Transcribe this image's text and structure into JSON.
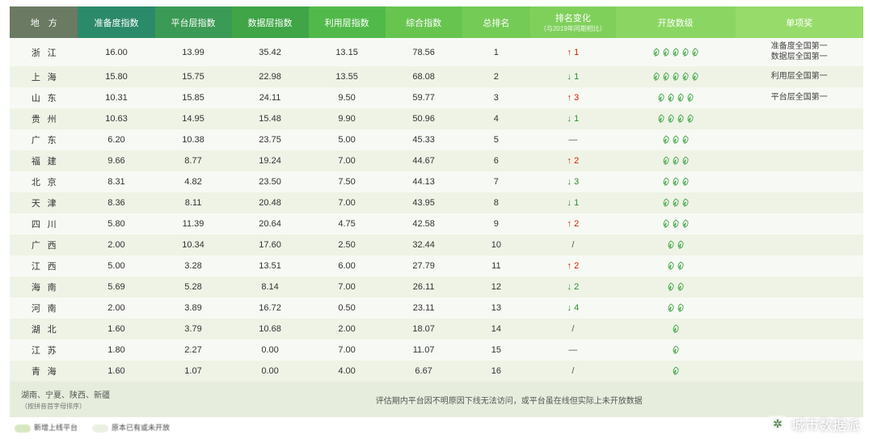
{
  "header": {
    "columns": [
      {
        "label": "地　方",
        "color": "#6b7a62"
      },
      {
        "label": "准备度指数",
        "color": "#2b8a6a"
      },
      {
        "label": "平台层指数",
        "color": "#3b9a55"
      },
      {
        "label": "数据层指数",
        "color": "#3fa546"
      },
      {
        "label": "利用层指数",
        "color": "#51b94a"
      },
      {
        "label": "综合指数",
        "color": "#67c54f"
      },
      {
        "label": "总排名",
        "color": "#74cb56"
      },
      {
        "label": "排名变化",
        "sub": "（与2019年同期相比）",
        "color": "#7fd05b"
      },
      {
        "label": "开放数级",
        "color": "#8bd662"
      },
      {
        "label": "单项奖",
        "color": "#97db6a"
      }
    ]
  },
  "col_widths": [
    "8%",
    "9%",
    "9%",
    "9%",
    "9%",
    "9%",
    "8%",
    "10%",
    "14%",
    "15%"
  ],
  "rows": [
    {
      "region": "浙江",
      "prep": "16.00",
      "plat": "13.99",
      "data": "35.42",
      "util": "13.15",
      "total": "78.56",
      "rank": "1",
      "change": {
        "dir": "up",
        "val": "1"
      },
      "level": 5,
      "award": "准备度全国第一\n数据层全国第一"
    },
    {
      "region": "上海",
      "prep": "15.80",
      "plat": "15.75",
      "data": "22.98",
      "util": "13.55",
      "total": "68.08",
      "rank": "2",
      "change": {
        "dir": "down",
        "val": "1"
      },
      "level": 5,
      "award": "利用层全国第一"
    },
    {
      "region": "山东",
      "prep": "10.31",
      "plat": "15.85",
      "data": "24.11",
      "util": "9.50",
      "total": "59.77",
      "rank": "3",
      "change": {
        "dir": "up",
        "val": "3"
      },
      "level": 4,
      "award": "平台层全国第一"
    },
    {
      "region": "贵州",
      "prep": "10.63",
      "plat": "14.95",
      "data": "15.48",
      "util": "9.90",
      "total": "50.96",
      "rank": "4",
      "change": {
        "dir": "down",
        "val": "1"
      },
      "level": 4,
      "award": ""
    },
    {
      "region": "广东",
      "prep": "6.20",
      "plat": "10.38",
      "data": "23.75",
      "util": "5.00",
      "total": "45.33",
      "rank": "5",
      "change": {
        "dir": "none",
        "val": "—"
      },
      "level": 3,
      "award": ""
    },
    {
      "region": "福建",
      "prep": "9.66",
      "plat": "8.77",
      "data": "19.24",
      "util": "7.00",
      "total": "44.67",
      "rank": "6",
      "change": {
        "dir": "up",
        "val": "2"
      },
      "level": 3,
      "award": ""
    },
    {
      "region": "北京",
      "prep": "8.31",
      "plat": "4.82",
      "data": "23.50",
      "util": "7.50",
      "total": "44.13",
      "rank": "7",
      "change": {
        "dir": "down",
        "val": "3"
      },
      "level": 3,
      "award": ""
    },
    {
      "region": "天津",
      "prep": "8.36",
      "plat": "8.11",
      "data": "20.48",
      "util": "7.00",
      "total": "43.95",
      "rank": "8",
      "change": {
        "dir": "down",
        "val": "1"
      },
      "level": 3,
      "award": ""
    },
    {
      "region": "四川",
      "prep": "5.80",
      "plat": "11.39",
      "data": "20.64",
      "util": "4.75",
      "total": "42.58",
      "rank": "9",
      "change": {
        "dir": "up",
        "val": "2"
      },
      "level": 3,
      "award": ""
    },
    {
      "region": "广西",
      "prep": "2.00",
      "plat": "10.34",
      "data": "17.60",
      "util": "2.50",
      "total": "32.44",
      "rank": "10",
      "change": {
        "dir": "slash",
        "val": "/"
      },
      "level": 2,
      "award": ""
    },
    {
      "region": "江西",
      "prep": "5.00",
      "plat": "3.28",
      "data": "13.51",
      "util": "6.00",
      "total": "27.79",
      "rank": "11",
      "change": {
        "dir": "up",
        "val": "2"
      },
      "level": 2,
      "award": ""
    },
    {
      "region": "海南",
      "prep": "5.69",
      "plat": "5.28",
      "data": "8.14",
      "util": "7.00",
      "total": "26.11",
      "rank": "12",
      "change": {
        "dir": "down",
        "val": "2"
      },
      "level": 2,
      "award": ""
    },
    {
      "region": "河南",
      "prep": "2.00",
      "plat": "3.89",
      "data": "16.72",
      "util": "0.50",
      "total": "23.11",
      "rank": "13",
      "change": {
        "dir": "down",
        "val": "4"
      },
      "level": 2,
      "award": ""
    },
    {
      "region": "湖北",
      "prep": "1.60",
      "plat": "3.79",
      "data": "10.68",
      "util": "2.00",
      "total": "18.07",
      "rank": "14",
      "change": {
        "dir": "slash",
        "val": "/"
      },
      "level": 1,
      "award": ""
    },
    {
      "region": "江苏",
      "prep": "1.80",
      "plat": "2.27",
      "data": "0.00",
      "util": "7.00",
      "total": "11.07",
      "rank": "15",
      "change": {
        "dir": "none",
        "val": "—"
      },
      "level": 1,
      "award": ""
    },
    {
      "region": "青海",
      "prep": "1.60",
      "plat": "1.07",
      "data": "0.00",
      "util": "4.00",
      "total": "6.67",
      "rank": "16",
      "change": {
        "dir": "slash",
        "val": "/"
      },
      "level": 1,
      "award": ""
    }
  ],
  "footer": {
    "left": "湖南、宁夏、陕西、新疆",
    "left_sub": "（按拼音首字母排序）",
    "right": "评估期内平台因不明原因下线无法访问，或平台虽在线但实际上未开放数据"
  },
  "legend": [
    {
      "color": "#cfe3b8",
      "label": "新增上线平台"
    },
    {
      "color": "#e7eedd",
      "label": "原本已有或未开放"
    }
  ],
  "watermark": "城市数据派",
  "leaf_color": "#3fa546",
  "arrow_colors": {
    "up": "#d81e06",
    "down": "#2e8b2e"
  }
}
